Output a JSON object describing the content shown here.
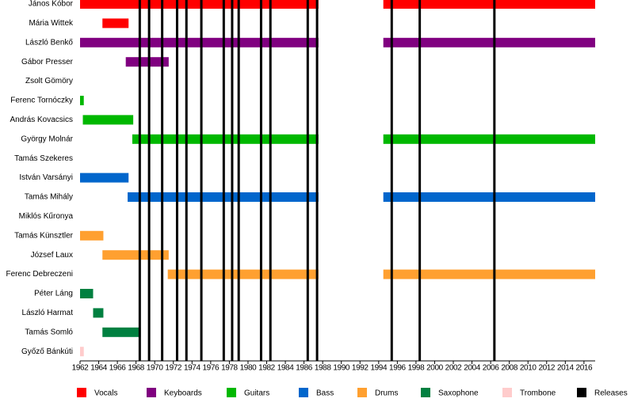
{
  "chart_data": {
    "type": "timeline",
    "categories": [
      "János Kóbor",
      "Mária Wittek",
      "László Benkő",
      "Gábor Presser",
      "Zsolt Gömöry",
      "Ferenc Tornóczky",
      "András Kovacsics",
      "György Molnár",
      "Tamás Szekeres",
      "István Varsányi",
      "Tamás Mihály",
      "Miklós Kűronya",
      "Tamás Künsztler",
      "József Laux",
      "Ferenc Debreczeni",
      "Péter Láng",
      "László Harmat",
      "Tamás Somló",
      "Győző Bánkúti"
    ],
    "xlim": [
      1962,
      2017.2
    ],
    "xticks": [
      1962,
      1964,
      1966,
      1968,
      1970,
      1972,
      1974,
      1976,
      1978,
      1980,
      1982,
      1984,
      1986,
      1988,
      1990,
      1992,
      1994,
      1996,
      1998,
      2000,
      2002,
      2004,
      2006,
      2008,
      2010,
      2012,
      2014,
      2016
    ],
    "series": [
      {
        "name": "Vocals",
        "color": "#ff0000",
        "values": [
          [
            [
              1962,
              1987.55
            ],
            [
              1994.5,
              2017.2
            ]
          ],
          [
            [
              1964.4,
              1967.2
            ]
          ],
          null,
          null,
          null,
          null,
          null,
          null,
          null,
          null,
          null,
          null,
          null,
          null,
          null,
          null,
          null,
          null,
          null
        ]
      },
      {
        "name": "Keyboards",
        "color": "#800080",
        "values": [
          null,
          null,
          [
            [
              1962,
              1987.55
            ],
            [
              1994.5,
              2017.2
            ]
          ],
          [
            [
              1966.9,
              1971.5
            ]
          ],
          null,
          null,
          null,
          null,
          null,
          null,
          null,
          null,
          null,
          null,
          null,
          null,
          null,
          null,
          null
        ]
      },
      {
        "name": "Guitars",
        "color": "#00b800",
        "values": [
          null,
          null,
          null,
          null,
          null,
          [
            [
              1962,
              1962.4
            ]
          ],
          [
            [
              1962.3,
              1967.7
            ]
          ],
          [
            [
              1967.6,
              1987.55
            ],
            [
              1994.5,
              2017.2
            ]
          ],
          null,
          null,
          null,
          null,
          null,
          null,
          null,
          null,
          null,
          null,
          null
        ]
      },
      {
        "name": "Bass",
        "color": "#0066cc",
        "values": [
          null,
          null,
          null,
          null,
          null,
          null,
          null,
          null,
          null,
          [
            [
              1962,
              1967.2
            ]
          ],
          [
            [
              1967.1,
              1987.55
            ],
            [
              1994.5,
              2017.2
            ]
          ],
          null,
          null,
          null,
          null,
          null,
          null,
          null,
          null
        ]
      },
      {
        "name": "Drums",
        "color": "#ffa030",
        "values": [
          null,
          null,
          null,
          null,
          null,
          null,
          null,
          null,
          null,
          null,
          null,
          null,
          [
            [
              1962,
              1964.5
            ]
          ],
          [
            [
              1964.4,
              1971.5
            ]
          ],
          [
            [
              1971.4,
              1987.55
            ],
            [
              1994.5,
              2017.2
            ]
          ],
          null,
          null,
          null,
          null
        ]
      },
      {
        "name": "Saxophone",
        "color": "#008040",
        "values": [
          null,
          null,
          null,
          null,
          null,
          null,
          null,
          null,
          null,
          null,
          null,
          null,
          null,
          null,
          null,
          [
            [
              1962,
              1963.4
            ]
          ],
          [
            [
              1963.4,
              1964.5
            ]
          ],
          [
            [
              1964.4,
              1968.5
            ]
          ],
          null
        ]
      },
      {
        "name": "Trombone",
        "color": "#ffcccc",
        "values": [
          null,
          null,
          null,
          null,
          null,
          null,
          null,
          null,
          null,
          null,
          null,
          null,
          null,
          null,
          null,
          null,
          null,
          null,
          [
            [
              1962,
              1962.4
            ]
          ]
        ]
      }
    ],
    "releases": {
      "name": "Releases",
      "color": "#000000",
      "values": [
        1968.4,
        1969.4,
        1970.8,
        1972.4,
        1973.4,
        1975.0,
        1977.4,
        1978.3,
        1979.0,
        1981.4,
        1982.4,
        1986.4,
        1987.4,
        1995.4,
        1998.4,
        2006.4
      ]
    }
  }
}
